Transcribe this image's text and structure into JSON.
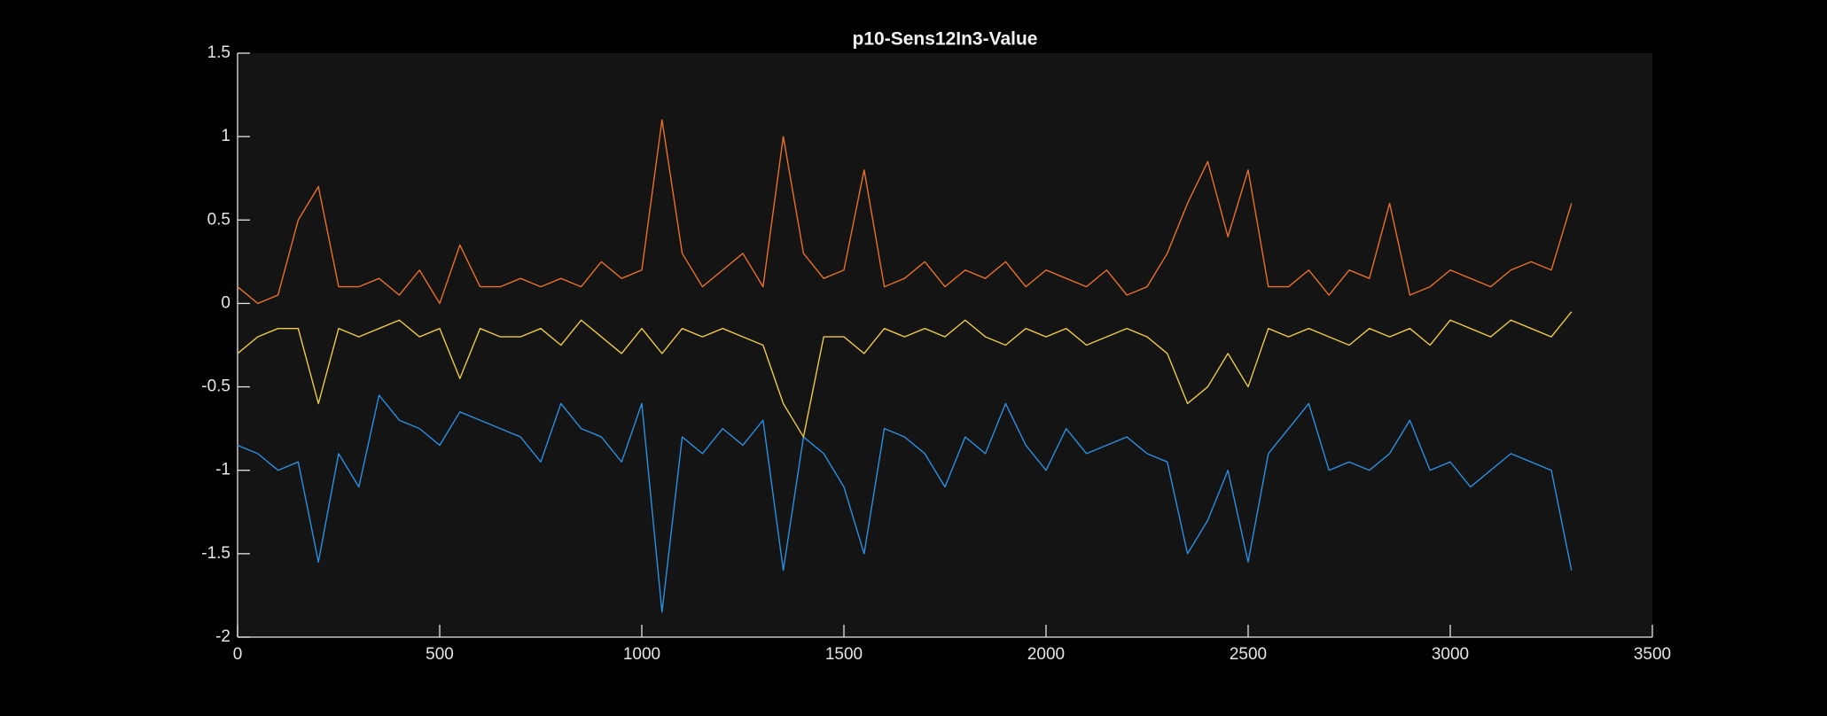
{
  "chart_data": {
    "type": "line",
    "title": "p10-Sens12In3-Value",
    "x": [
      0,
      50,
      100,
      150,
      200,
      250,
      300,
      350,
      400,
      450,
      500,
      550,
      600,
      650,
      700,
      750,
      800,
      850,
      900,
      950,
      1000,
      1050,
      1100,
      1150,
      1200,
      1250,
      1300,
      1350,
      1400,
      1450,
      1500,
      1550,
      1600,
      1650,
      1700,
      1750,
      1800,
      1850,
      1900,
      1950,
      2000,
      2050,
      2100,
      2150,
      2200,
      2250,
      2300,
      2350,
      2400,
      2450,
      2500,
      2550,
      2600,
      2650,
      2700,
      2750,
      2800,
      2850,
      2900,
      2950,
      3000,
      3050,
      3100,
      3150,
      3200,
      3250,
      3300
    ],
    "series": [
      {
        "color": "#2b8fe0",
        "values": [
          -0.85,
          -0.9,
          -1.0,
          -0.95,
          -1.55,
          -0.9,
          -1.1,
          -0.55,
          -0.7,
          -0.75,
          -0.85,
          -0.65,
          -0.7,
          -0.75,
          -0.8,
          -0.95,
          -0.6,
          -0.75,
          -0.8,
          -0.95,
          -0.6,
          -1.85,
          -0.8,
          -0.9,
          -0.75,
          -0.85,
          -0.7,
          -1.6,
          -0.8,
          -0.9,
          -1.1,
          -1.5,
          -0.75,
          -0.8,
          -0.9,
          -1.1,
          -0.8,
          -0.9,
          -0.6,
          -0.85,
          -1.0,
          -0.75,
          -0.9,
          -0.85,
          -0.8,
          -0.9,
          -0.95,
          -1.5,
          -1.3,
          -1.0,
          -1.55,
          -0.9,
          -0.75,
          -0.6,
          -1.0,
          -0.95,
          -1.0,
          -0.9,
          -0.7,
          -1.0,
          -0.95,
          -1.1,
          -1.0,
          -0.9,
          -0.95,
          -1.0,
          -1.6
        ]
      },
      {
        "color": "#e8702a",
        "values": [
          0.1,
          0.0,
          0.05,
          0.5,
          0.7,
          0.1,
          0.1,
          0.15,
          0.05,
          0.2,
          0.0,
          0.35,
          0.1,
          0.1,
          0.15,
          0.1,
          0.15,
          0.1,
          0.25,
          0.15,
          0.2,
          1.1,
          0.3,
          0.1,
          0.2,
          0.3,
          0.1,
          1.0,
          0.3,
          0.15,
          0.2,
          0.8,
          0.1,
          0.15,
          0.25,
          0.1,
          0.2,
          0.15,
          0.25,
          0.1,
          0.2,
          0.15,
          0.1,
          0.2,
          0.05,
          0.1,
          0.3,
          0.6,
          0.85,
          0.4,
          0.8,
          0.1,
          0.1,
          0.2,
          0.05,
          0.2,
          0.15,
          0.6,
          0.05,
          0.1,
          0.2,
          0.15,
          0.1,
          0.2,
          0.25,
          0.2,
          0.6
        ]
      },
      {
        "color": "#edc949",
        "values": [
          -0.3,
          -0.2,
          -0.15,
          -0.15,
          -0.6,
          -0.15,
          -0.2,
          -0.15,
          -0.1,
          -0.2,
          -0.15,
          -0.45,
          -0.15,
          -0.2,
          -0.2,
          -0.15,
          -0.25,
          -0.1,
          -0.2,
          -0.3,
          -0.15,
          -0.3,
          -0.15,
          -0.2,
          -0.15,
          -0.2,
          -0.25,
          -0.6,
          -0.8,
          -0.2,
          -0.2,
          -0.3,
          -0.15,
          -0.2,
          -0.15,
          -0.2,
          -0.1,
          -0.2,
          -0.25,
          -0.15,
          -0.2,
          -0.15,
          -0.25,
          -0.2,
          -0.15,
          -0.2,
          -0.3,
          -0.6,
          -0.5,
          -0.3,
          -0.5,
          -0.15,
          -0.2,
          -0.15,
          -0.2,
          -0.25,
          -0.15,
          -0.2,
          -0.15,
          -0.25,
          -0.1,
          -0.15,
          -0.2,
          -0.1,
          -0.15,
          -0.2,
          -0.05
        ]
      }
    ],
    "xlim": [
      0,
      3500
    ],
    "xticks": [
      0,
      500,
      1000,
      1500,
      2000,
      2500,
      3000,
      3500
    ],
    "ylim": [
      -2,
      1.5
    ],
    "yticks": [
      -2,
      -1.5,
      -1,
      -0.5,
      0,
      0.5,
      1,
      1.5
    ]
  }
}
